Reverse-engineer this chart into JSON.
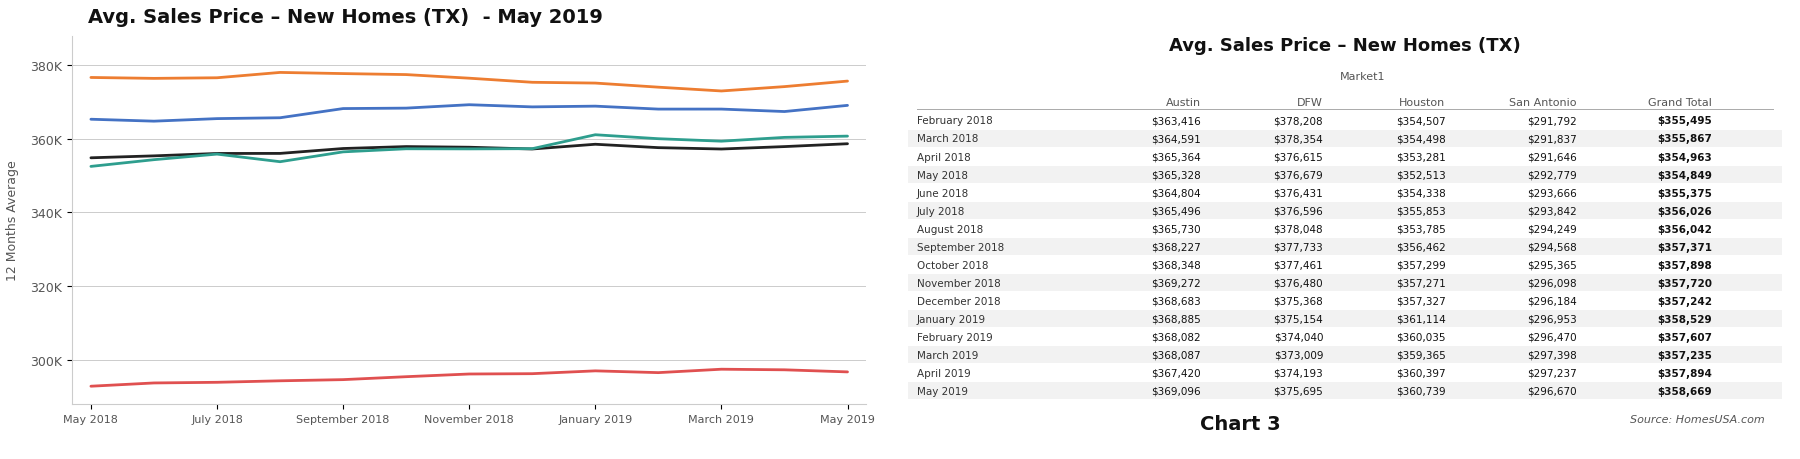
{
  "chart_title": "Avg. Sales Price – New Homes (TX)  - May 2019",
  "table_title": "Avg. Sales Price – New Homes (TX)",
  "ylabel": "12 Months Average",
  "months": [
    "May 2018",
    "June 2018",
    "July 2018",
    "August 2018",
    "September 2018",
    "October 2018",
    "November 2018",
    "December 2018",
    "January 2019",
    "February 2019",
    "March 2019",
    "April 2019",
    "May 2019"
  ],
  "xtick_labels": [
    "May 2018",
    "July 2018",
    "September 2018",
    "November 2018",
    "January 2019",
    "March 2019",
    "May 2019"
  ],
  "ytick_labels": [
    "300K",
    "320K",
    "340K",
    "360K",
    "380K"
  ],
  "ytick_values": [
    300000,
    320000,
    340000,
    360000,
    380000
  ],
  "series": {
    "Austin": [
      365328,
      364804,
      365496,
      365730,
      368227,
      368348,
      369272,
      368683,
      368885,
      368082,
      368087,
      367420,
      369096
    ],
    "DFW": [
      376679,
      376431,
      376596,
      378048,
      377733,
      377461,
      376480,
      375368,
      375154,
      374040,
      373009,
      374193,
      375695
    ],
    "Houston": [
      352513,
      354338,
      355853,
      353785,
      356462,
      357299,
      357271,
      357327,
      361114,
      360035,
      359365,
      360397,
      360739
    ],
    "San Antonio": [
      292779,
      293666,
      293842,
      294249,
      294568,
      295365,
      296098,
      296184,
      296953,
      296470,
      297398,
      297237,
      296670
    ],
    "Grand Total": [
      354849,
      355375,
      356026,
      356042,
      357371,
      357898,
      357720,
      357242,
      358529,
      357607,
      357235,
      357894,
      358669
    ]
  },
  "line_colors": {
    "Austin": "#4472C4",
    "DFW": "#ED7D31",
    "Houston": "#2E9E8E",
    "San Antonio": "#E05050",
    "Grand Total": "#222222"
  },
  "line_widths": {
    "Austin": 2.0,
    "DFW": 2.0,
    "Houston": 2.0,
    "San Antonio": 2.0,
    "Grand Total": 2.0
  },
  "ylim": [
    288000,
    388000
  ],
  "table_rows": [
    [
      "February 2018",
      "$363,416",
      "$378,208",
      "$354,507",
      "$291,792",
      "$355,495"
    ],
    [
      "March 2018",
      "$364,591",
      "$378,354",
      "$354,498",
      "$291,837",
      "$355,867"
    ],
    [
      "April 2018",
      "$365,364",
      "$376,615",
      "$353,281",
      "$291,646",
      "$354,963"
    ],
    [
      "May 2018",
      "$365,328",
      "$376,679",
      "$352,513",
      "$292,779",
      "$354,849"
    ],
    [
      "June 2018",
      "$364,804",
      "$376,431",
      "$354,338",
      "$293,666",
      "$355,375"
    ],
    [
      "July 2018",
      "$365,496",
      "$376,596",
      "$355,853",
      "$293,842",
      "$356,026"
    ],
    [
      "August 2018",
      "$365,730",
      "$378,048",
      "$353,785",
      "$294,249",
      "$356,042"
    ],
    [
      "September 2018",
      "$368,227",
      "$377,733",
      "$356,462",
      "$294,568",
      "$357,371"
    ],
    [
      "October 2018",
      "$368,348",
      "$377,461",
      "$357,299",
      "$295,365",
      "$357,898"
    ],
    [
      "November 2018",
      "$369,272",
      "$376,480",
      "$357,271",
      "$296,098",
      "$357,720"
    ],
    [
      "December 2018",
      "$368,683",
      "$375,368",
      "$357,327",
      "$296,184",
      "$357,242"
    ],
    [
      "January 2019",
      "$368,885",
      "$375,154",
      "$361,114",
      "$296,953",
      "$358,529"
    ],
    [
      "February 2019",
      "$368,082",
      "$374,040",
      "$360,035",
      "$296,470",
      "$357,607"
    ],
    [
      "March 2019",
      "$368,087",
      "$373,009",
      "$359,365",
      "$297,398",
      "$357,235"
    ],
    [
      "April 2019",
      "$367,420",
      "$374,193",
      "$360,397",
      "$297,237",
      "$357,894"
    ],
    [
      "May 2019",
      "$369,096",
      "$375,695",
      "$360,739",
      "$296,670",
      "$358,669"
    ]
  ],
  "col_headers": [
    "Austin",
    "DFW",
    "Houston",
    "San Antonio",
    "Grand Total"
  ],
  "source_text": "Source: HomesUSA.com",
  "chart3_text": "Chart 3",
  "background_color": "#FFFFFF",
  "grid_color": "#CCCCCC",
  "legend_label": "Market1"
}
